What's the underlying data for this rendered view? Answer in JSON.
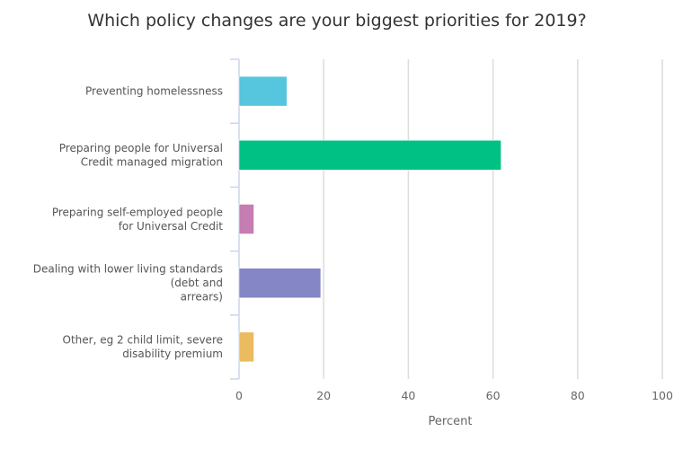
{
  "chart_data": {
    "type": "bar",
    "orientation": "horizontal",
    "title": "Which policy changes are your biggest priorities for 2019?",
    "xlabel": "Percent",
    "ylabel": "",
    "xlim": [
      0,
      100
    ],
    "xticks": [
      "0",
      "20",
      "40",
      "60",
      "80",
      "100"
    ],
    "grid": true,
    "categories": [
      "Preventing homelessness",
      "Preparing people for Universal Credit managed migration",
      "Preparing self-employed people for Universal Credit",
      "Dealing with lower living standards (debt and arrears)",
      "Other, eg 2 child limit, severe disability premium"
    ],
    "category_lines": [
      [
        "Preventing homelessness"
      ],
      [
        "Preparing people for Universal",
        "Credit managed migration"
      ],
      [
        "Preparing self-employed people",
        "for Universal Credit"
      ],
      [
        "Dealing with lower living standards",
        "(debt and",
        "arrears)"
      ],
      [
        "Other, eg 2 child limit, severe",
        "disability premium"
      ]
    ],
    "values": [
      11.3,
      61.9,
      3.5,
      19.3,
      3.5
    ],
    "colors": [
      "#56c5de",
      "#00c184",
      "#c57db2",
      "#8486c5",
      "#ebbb5f"
    ]
  }
}
